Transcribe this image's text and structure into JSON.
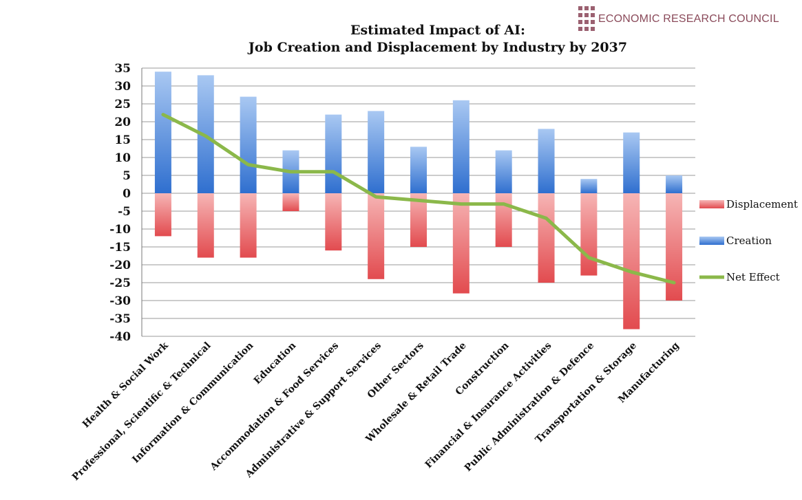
{
  "logo": {
    "text": "ECONOMIC RESEARCH COUNCIL",
    "color": "#8a4a5a"
  },
  "chart_data": {
    "type": "bar",
    "title": [
      "Estimated Impact of AI:",
      "Job Creation and Displacement by Industry by 2037"
    ],
    "categories": [
      "Health & Social Work",
      "Professional, Scientific & Technical",
      "Information & Communication",
      "Education",
      "Accommodation & Food Services",
      "Administrative & Support Services",
      "Other Sectors",
      "Wholesale & Retail Trade",
      "Construction",
      "Financial & Insurance Activities",
      "Public Administration & Defence",
      "Transportation & Storage",
      "Manufacturing"
    ],
    "series": [
      {
        "name": "Displacement",
        "kind": "bar",
        "color": "#e8565a",
        "values": [
          -12,
          -18,
          -18,
          -5,
          -16,
          -24,
          -15,
          -28,
          -15,
          -25,
          -23,
          -38,
          -30
        ]
      },
      {
        "name": "Creation",
        "kind": "bar",
        "color": "#3f7fd6",
        "values": [
          34,
          33,
          27,
          12,
          22,
          23,
          13,
          26,
          12,
          18,
          4,
          17,
          5
        ]
      },
      {
        "name": "Net Effect",
        "kind": "line",
        "color": "#8bb84a",
        "values": [
          22,
          16,
          8,
          6,
          6,
          -1,
          -2,
          -3,
          -3,
          -7,
          -18,
          -22,
          -25
        ]
      }
    ],
    "ylim": [
      -40,
      35
    ],
    "yticks": [
      35,
      30,
      25,
      20,
      15,
      10,
      5,
      0,
      -5,
      -10,
      -15,
      -20,
      -25,
      -30,
      -35,
      -40
    ],
    "grid": true,
    "legend_position": "right"
  }
}
